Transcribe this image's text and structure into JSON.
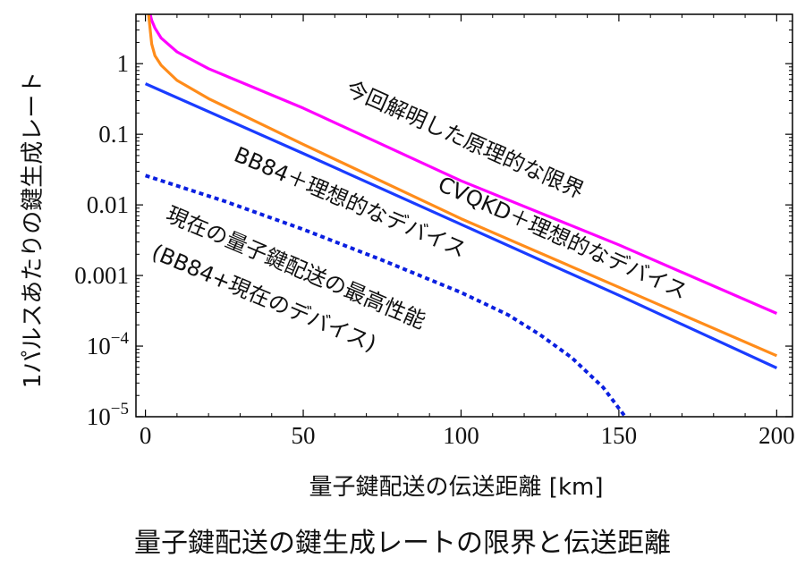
{
  "chart_data": {
    "type": "line",
    "title": "",
    "xlabel": "量子鍵配送の伝送距離 [km]",
    "ylabel": "1パルスあたりの鍵生成レート",
    "x_scale": "linear",
    "y_scale": "log",
    "xlim": [
      -3,
      205
    ],
    "ylim": [
      1e-05,
      5
    ],
    "x_ticks": [
      0,
      50,
      100,
      150,
      200
    ],
    "x_tick_labels": [
      "0",
      "50",
      "100",
      "150",
      "200"
    ],
    "y_ticks": [
      1,
      0.1,
      0.01,
      0.001,
      0.0001,
      1e-05
    ],
    "y_tick_labels": [
      {
        "base": "1",
        "exp": ""
      },
      {
        "base": "0.1",
        "exp": ""
      },
      {
        "base": "0.01",
        "exp": ""
      },
      {
        "base": "0.001",
        "exp": ""
      },
      {
        "base": "10",
        "exp": "−4"
      },
      {
        "base": "10",
        "exp": "−5"
      }
    ],
    "grid": false,
    "legend": "none",
    "series": [
      {
        "color": "#ff00ff",
        "dash": "solid",
        "x": [
          1.5,
          2,
          3,
          5,
          10,
          20,
          50,
          100,
          150,
          200
        ],
        "y": [
          5,
          4.1,
          3.2,
          2.3,
          1.47,
          0.85,
          0.235,
          0.0219,
          0.00272,
          0.00029
        ]
      },
      {
        "color": "#ff8c1a",
        "dash": "solid",
        "x": [
          1,
          2,
          3,
          5,
          10,
          20,
          50,
          100,
          150,
          200
        ],
        "y": [
          5,
          1.9,
          1.3,
          0.95,
          0.58,
          0.32,
          0.072,
          0.00637,
          0.000683,
          7.3e-05
        ]
      },
      {
        "color": "#1a3cff",
        "dash": "solid",
        "x": [
          0,
          50,
          100,
          150,
          200
        ],
        "y": [
          0.52,
          0.0535,
          0.0053,
          0.000525,
          4.9e-05
        ]
      },
      {
        "color": "#0a1fe0",
        "dash": "dotted",
        "x": [
          0,
          25,
          50,
          75,
          100,
          115,
          125,
          135,
          145,
          152
        ],
        "y": [
          0.026,
          0.0113,
          0.0045,
          0.00165,
          0.000575,
          0.000275,
          0.000145,
          6.9e-05,
          2.6e-05,
          1e-05
        ]
      }
    ],
    "annotations": [
      {
        "text": "今回解明した原理的な限界"
      },
      {
        "text": "CVQKD＋理想的なデバイス"
      },
      {
        "text": "BB84＋理想的なデバイス"
      },
      {
        "text": "現在の量子鍵配送の最高性能"
      },
      {
        "text": "(BB84+現在のデバイス)"
      }
    ]
  },
  "caption": "量子鍵配送の鍵生成レートの限界と伝送距離"
}
